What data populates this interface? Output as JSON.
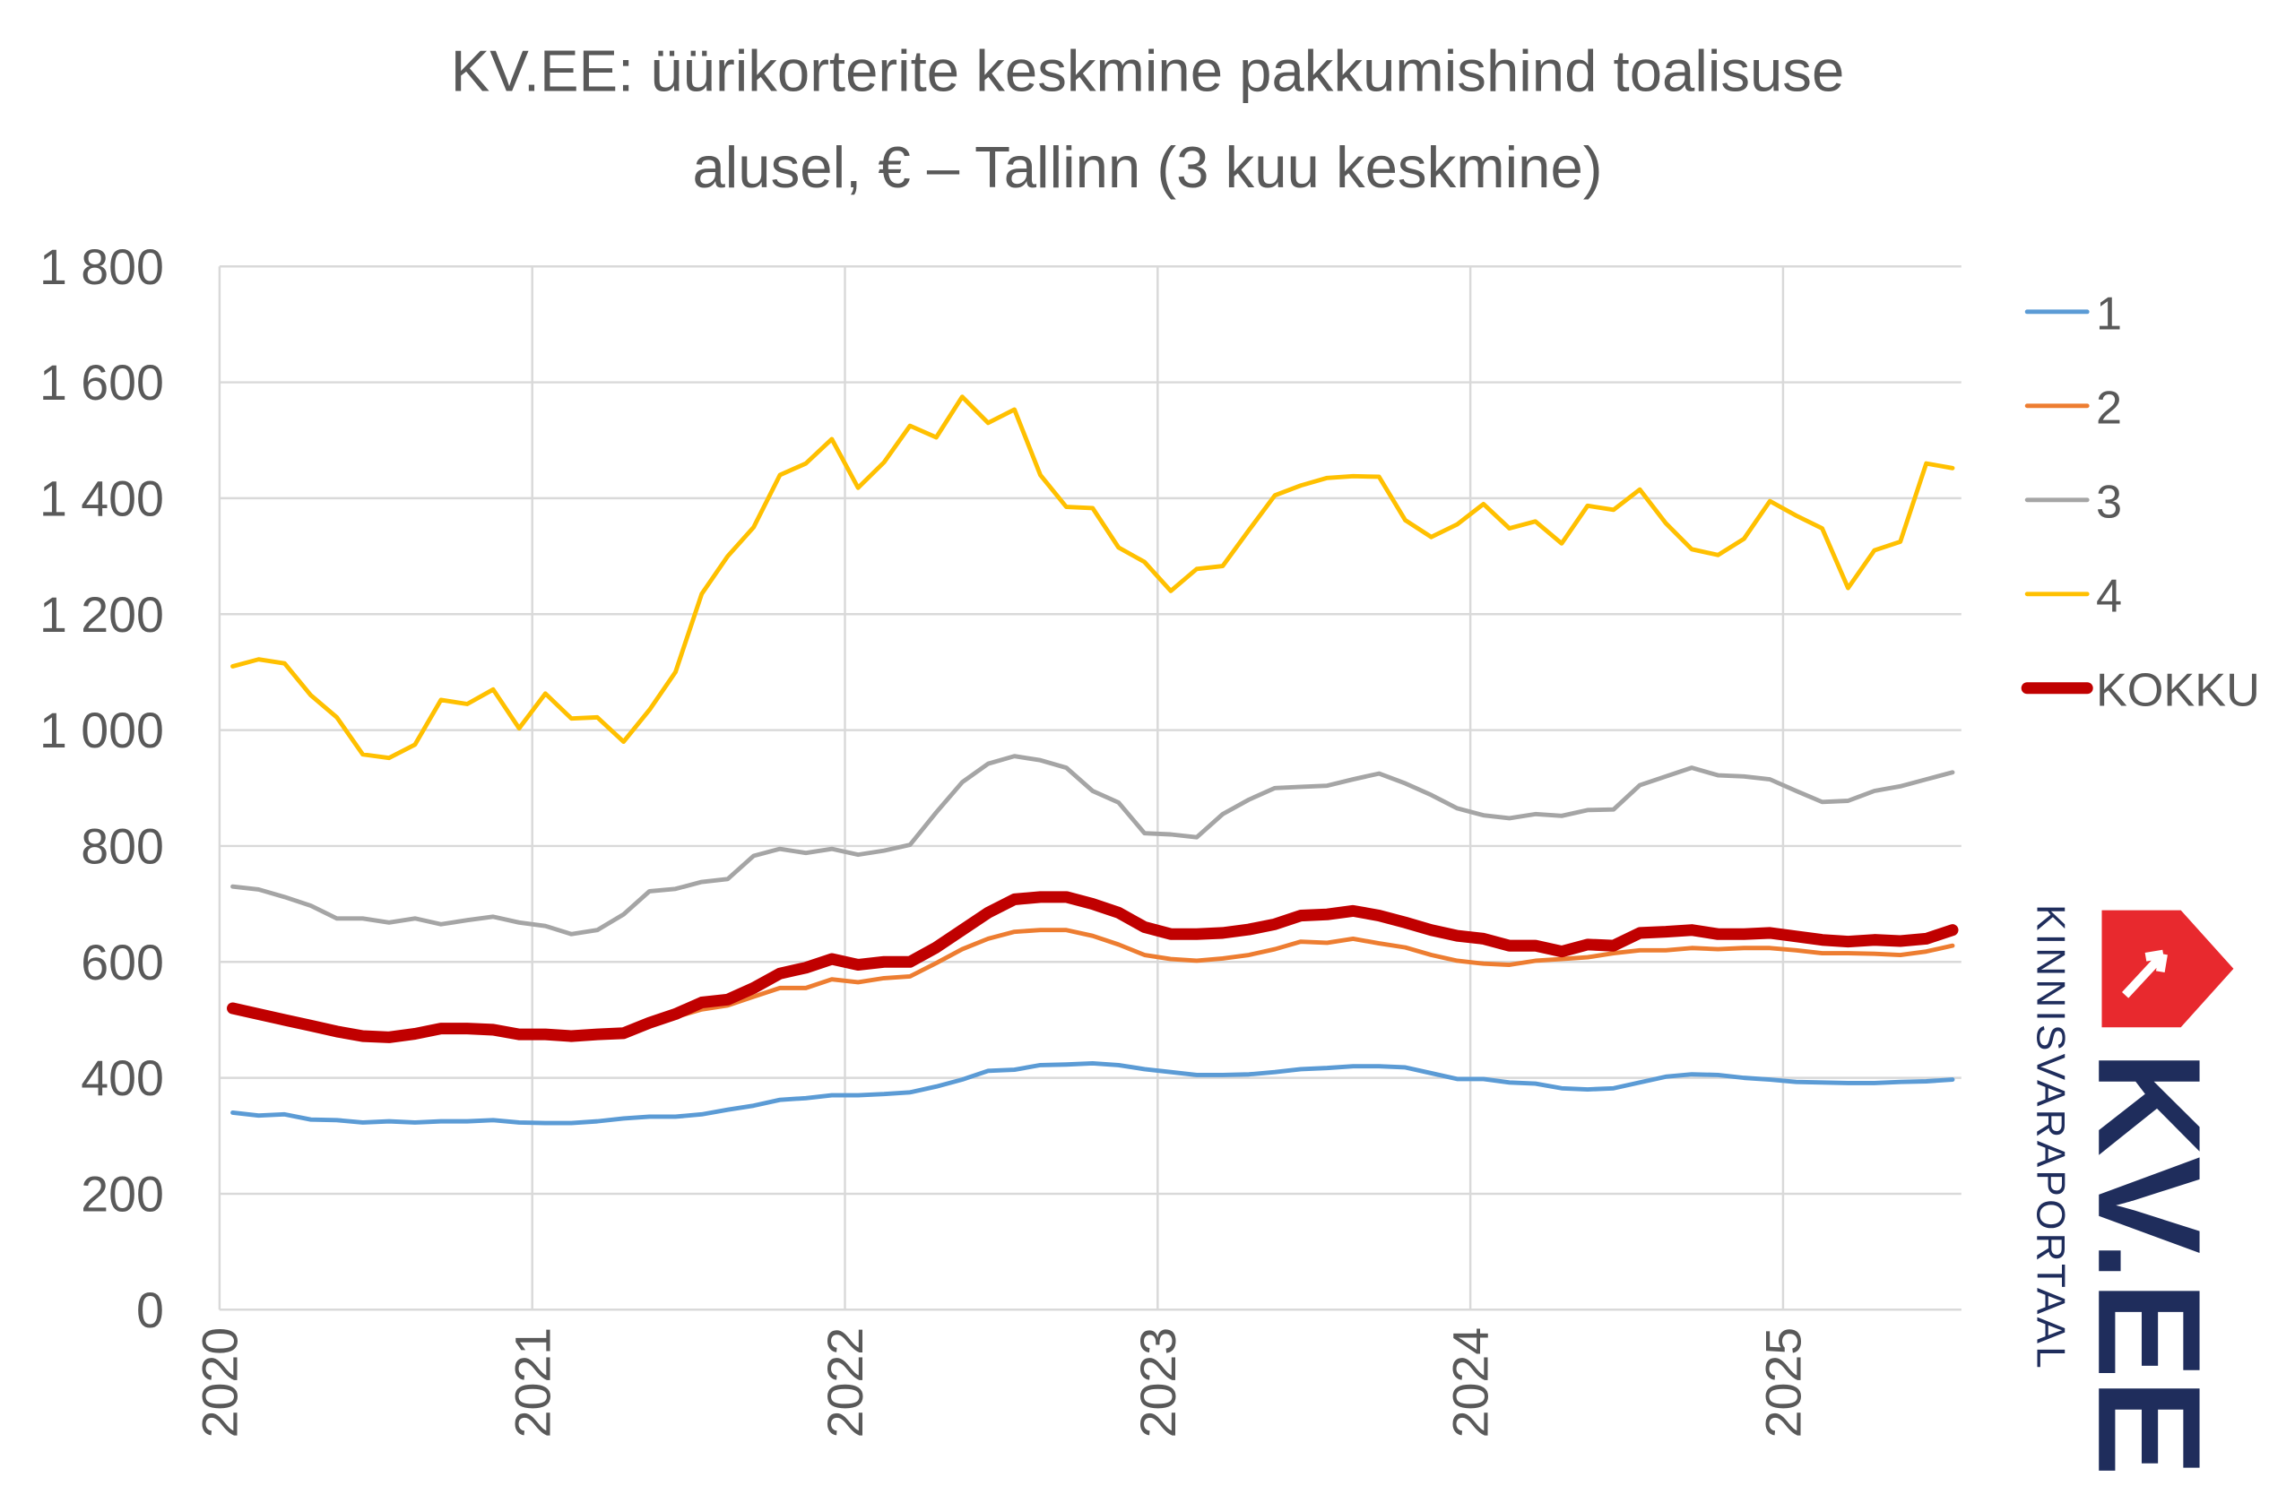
{
  "chart_data": {
    "type": "line",
    "title": [
      "KV.EE: üürikorterite keskmine pakkumishind toalisuse",
      "alusel, € – Tallinn (3 kuu keskmine)"
    ],
    "x": [
      2020.042,
      2020.125,
      2020.208,
      2020.292,
      2020.375,
      2020.458,
      2020.542,
      2020.625,
      2020.708,
      2020.792,
      2020.875,
      2020.958,
      2021.042,
      2021.125,
      2021.208,
      2021.292,
      2021.375,
      2021.458,
      2021.542,
      2021.625,
      2021.708,
      2021.792,
      2021.875,
      2021.958,
      2022.042,
      2022.125,
      2022.208,
      2022.292,
      2022.375,
      2022.458,
      2022.542,
      2022.625,
      2022.708,
      2022.792,
      2022.875,
      2022.958,
      2023.042,
      2023.125,
      2023.208,
      2023.292,
      2023.375,
      2023.458,
      2023.542,
      2023.625,
      2023.708,
      2023.792,
      2023.875,
      2023.958,
      2024.042,
      2024.125,
      2024.208,
      2024.292,
      2024.375,
      2024.458,
      2024.542,
      2024.625,
      2024.708,
      2024.792,
      2024.875,
      2024.958,
      2025.042,
      2025.125,
      2025.208,
      2025.292,
      2025.375,
      2025.458,
      2025.542
    ],
    "series": [
      {
        "name": "1",
        "color": "#5b9bd5",
        "values": [
          340,
          335,
          337,
          328,
          327,
          323,
          325,
          323,
          325,
          325,
          327,
          323,
          322,
          322,
          325,
          330,
          333,
          333,
          337,
          345,
          352,
          362,
          365,
          370,
          370,
          372,
          375,
          385,
          397,
          412,
          414,
          422,
          423,
          425,
          422,
          415,
          410,
          405,
          405,
          406,
          410,
          415,
          417,
          420,
          420,
          418,
          408,
          398,
          398,
          392,
          390,
          382,
          380,
          382,
          392,
          402,
          406,
          405,
          400,
          397,
          393,
          392,
          391,
          391,
          393,
          394,
          397
        ]
      },
      {
        "name": "2",
        "color": "#ed7d31",
        "values": [
          518,
          510,
          498,
          488,
          478,
          472,
          470,
          478,
          485,
          484,
          482,
          474,
          476,
          478,
          480,
          478,
          492,
          505,
          518,
          525,
          540,
          555,
          555,
          570,
          565,
          572,
          575,
          598,
          622,
          640,
          652,
          655,
          655,
          645,
          630,
          612,
          605,
          602,
          606,
          612,
          622,
          635,
          633,
          640,
          632,
          625,
          612,
          602,
          597,
          595,
          602,
          605,
          608,
          615,
          620,
          620,
          624,
          622,
          624,
          624,
          620,
          615,
          615,
          614,
          612,
          618,
          628
        ]
      },
      {
        "name": "3",
        "color": "#a5a5a5",
        "values": [
          730,
          725,
          712,
          697,
          675,
          675,
          668,
          675,
          665,
          672,
          678,
          668,
          662,
          648,
          655,
          682,
          722,
          726,
          738,
          743,
          783,
          795,
          788,
          795,
          785,
          792,
          802,
          858,
          910,
          942,
          955,
          948,
          935,
          895,
          875,
          822,
          820,
          815,
          855,
          880,
          900,
          902,
          904,
          915,
          925,
          908,
          888,
          865,
          853,
          848,
          855,
          852,
          862,
          863,
          905,
          920,
          935,
          922,
          920,
          915,
          895,
          876,
          878,
          895,
          903,
          915,
          927
        ]
      },
      {
        "name": "4",
        "color": "#ffc000",
        "values": [
          1110,
          1122,
          1115,
          1060,
          1022,
          958,
          952,
          975,
          1052,
          1045,
          1070,
          1003,
          1063,
          1020,
          1022,
          980,
          1035,
          1100,
          1235,
          1300,
          1350,
          1440,
          1460,
          1502,
          1418,
          1462,
          1525,
          1505,
          1575,
          1530,
          1553,
          1440,
          1385,
          1383,
          1315,
          1290,
          1240,
          1278,
          1283,
          1345,
          1405,
          1422,
          1435,
          1438,
          1437,
          1362,
          1333,
          1355,
          1390,
          1348,
          1360,
          1322,
          1387,
          1380,
          1415,
          1357,
          1312,
          1302,
          1330,
          1395,
          1370,
          1348,
          1245,
          1310,
          1325,
          1460,
          1452
        ]
      },
      {
        "name": "KOKKU",
        "color": "#c00000",
        "values": [
          520,
          510,
          500,
          490,
          480,
          472,
          470,
          476,
          485,
          485,
          483,
          475,
          475,
          472,
          475,
          477,
          495,
          510,
          530,
          535,
          555,
          580,
          590,
          605,
          595,
          600,
          600,
          625,
          655,
          685,
          708,
          712,
          712,
          700,
          685,
          660,
          648,
          648,
          650,
          656,
          665,
          680,
          682,
          688,
          680,
          668,
          655,
          645,
          640,
          628,
          628,
          618,
          630,
          628,
          650,
          652,
          655,
          648,
          648,
          650,
          644,
          638,
          635,
          638,
          636,
          640,
          655
        ]
      }
    ],
    "xlim": [
      2020,
      2025.57
    ],
    "xticks": [
      2020,
      2021,
      2022,
      2023,
      2024,
      2025
    ],
    "ylim": [
      0,
      1800
    ],
    "yticks": [
      0,
      200,
      400,
      600,
      800,
      {
        "value": 1000,
        "label": "1 000"
      },
      {
        "value": 1200,
        "label": "1 200"
      },
      {
        "value": 1400,
        "label": "1 400"
      },
      {
        "value": 1600,
        "label": "1 600"
      },
      {
        "value": 1800,
        "label": "1 800"
      }
    ],
    "grid": true,
    "legend": "right"
  },
  "logo": {
    "text": "KV.EE",
    "subtitle": "KINNISVARAPORTAAL"
  }
}
